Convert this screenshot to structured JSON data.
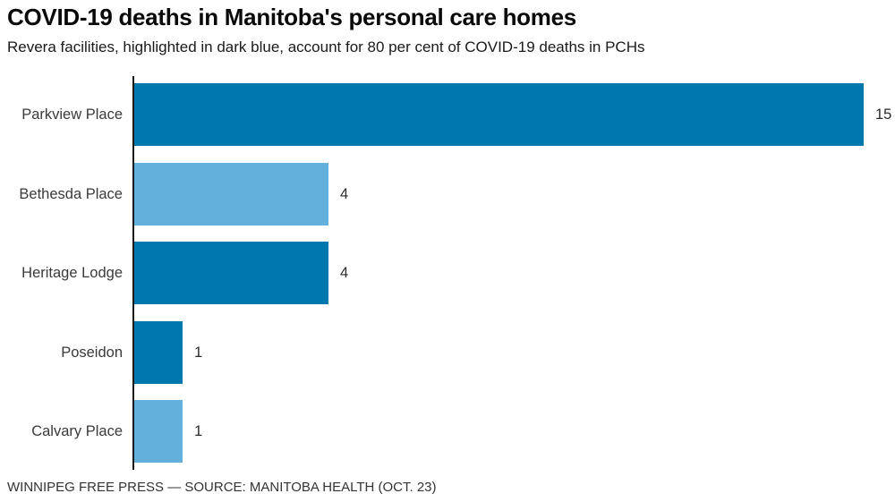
{
  "header": {
    "title": "COVID-19 deaths in Manitoba's personal care homes",
    "subtitle": "Revera facilities, highlighted in dark blue, account for 80 per cent of COVID-19 deaths in PCHs"
  },
  "footer": {
    "source": "WINNIPEG FREE PRESS — SOURCE: MANITOBA HEALTH (OCT. 23)"
  },
  "colors": {
    "revera_dark_blue": "#0077ad",
    "other_light_blue": "#63b0dc",
    "axis": "#1a1a1a"
  },
  "chart_data": {
    "type": "bar",
    "orientation": "horizontal",
    "title": "COVID-19 deaths in Manitoba's personal care homes",
    "categories": [
      "Parkview Place",
      "Bethesda Place",
      "Heritage Lodge",
      "Poseidon",
      "Calvary Place"
    ],
    "values": [
      15,
      4,
      4,
      1,
      1
    ],
    "value_labels": [
      "15",
      "4",
      "4",
      "1",
      "1"
    ],
    "is_revera": [
      true,
      false,
      true,
      true,
      false
    ],
    "bar_colors": [
      "#0077ad",
      "#63b0dc",
      "#0077ad",
      "#0077ad",
      "#63b0dc"
    ],
    "xlabel": "",
    "ylabel": "",
    "xlim": [
      0,
      15
    ],
    "grid": false,
    "legend": "none",
    "annotation": "Dark blue bars are Revera facilities (80% of PCH COVID-19 deaths)"
  }
}
